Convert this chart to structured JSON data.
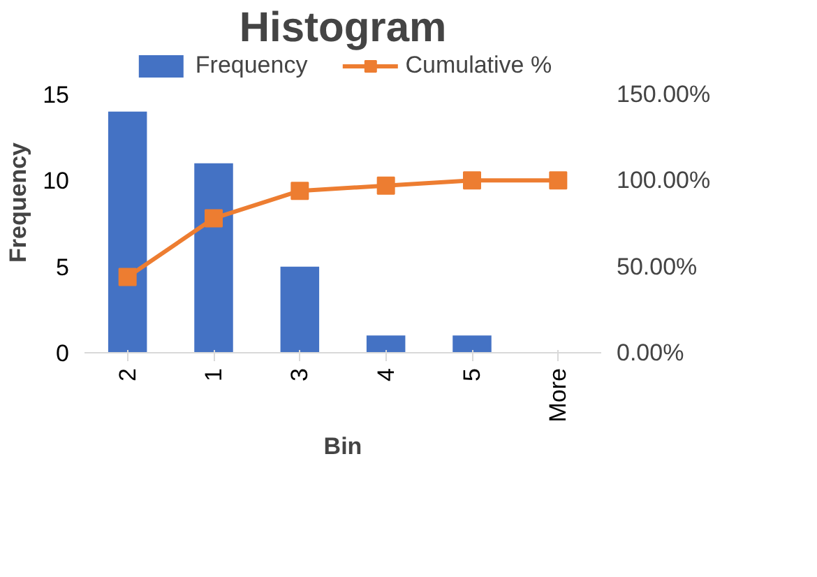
{
  "chart_data": {
    "type": "bar",
    "title": "Histogram",
    "xlabel": "Bin",
    "ylabel": "Frequency",
    "categories": [
      "2",
      "1",
      "3",
      "4",
      "5",
      "More"
    ],
    "series": [
      {
        "name": "Frequency",
        "color": "#4472c4",
        "values": [
          14,
          11,
          5,
          1,
          1,
          0
        ]
      },
      {
        "name": "Cumulative %",
        "color": "#ed7d31",
        "type": "line",
        "axis": "y2",
        "marker": "square",
        "values": [
          44,
          78,
          94,
          97,
          100,
          100
        ]
      }
    ],
    "ylim": [
      0,
      15
    ],
    "yticks": [
      0,
      5,
      10,
      15
    ],
    "y2lim": [
      0,
      150
    ],
    "y2ticks": [
      {
        "value": 0,
        "label": "0.00%"
      },
      {
        "value": 50,
        "label": "50.00%"
      },
      {
        "value": 100,
        "label": "100.00%"
      },
      {
        "value": 150,
        "label": "150.00%"
      }
    ],
    "grid": false,
    "legend": "top"
  }
}
